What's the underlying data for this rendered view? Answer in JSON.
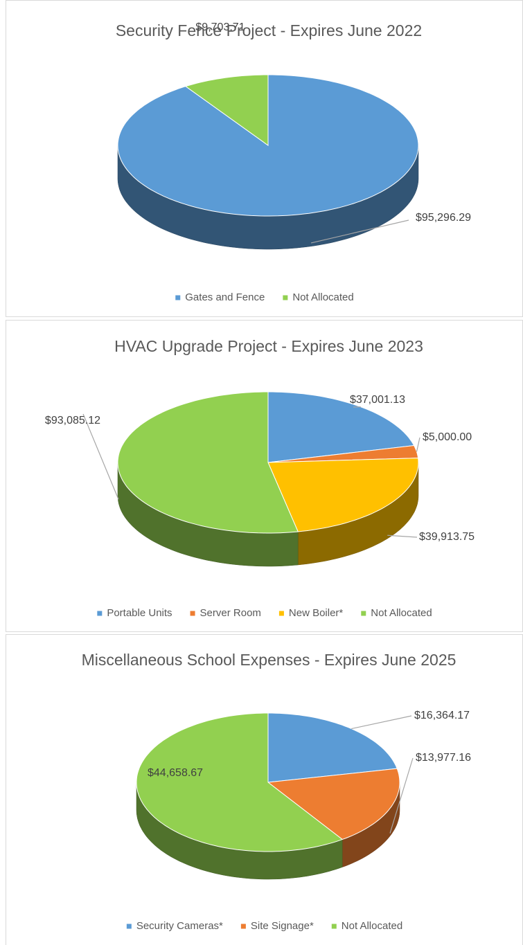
{
  "chart_data": [
    {
      "type": "pie3d",
      "title": "Security Fence Project - Expires June 2022",
      "categories": [
        "Gates and Fence",
        "Not Allocated"
      ],
      "values": [
        95296.29,
        9703.71
      ],
      "value_labels": [
        "$95,296.29",
        "$9,703.71"
      ],
      "colors": [
        "#5b9bd5",
        "#92d050"
      ],
      "legend": "bottom"
    },
    {
      "type": "pie3d",
      "title": "HVAC Upgrade Project - Expires June 2023",
      "categories": [
        "Portable Units",
        "Server Room",
        "New Boiler*",
        "Not Allocated"
      ],
      "values": [
        37001.13,
        5000.0,
        39913.75,
        93085.12
      ],
      "value_labels": [
        "$37,001.13",
        "$5,000.00",
        "$39,913.75",
        "$93,085.12"
      ],
      "colors": [
        "#5b9bd5",
        "#ed7d31",
        "#ffc000",
        "#92d050"
      ],
      "legend": "bottom"
    },
    {
      "type": "pie3d",
      "title": "Miscellaneous School Expenses - Expires June 2025",
      "categories": [
        "Security Cameras*",
        "Site Signage*",
        "Not Allocated"
      ],
      "values": [
        16364.17,
        13977.16,
        44658.67
      ],
      "value_labels": [
        "$16,364.17",
        "$13,977.16",
        "$44,658.67"
      ],
      "colors": [
        "#5b9bd5",
        "#ed7d31",
        "#92d050"
      ],
      "legend": "bottom"
    }
  ]
}
